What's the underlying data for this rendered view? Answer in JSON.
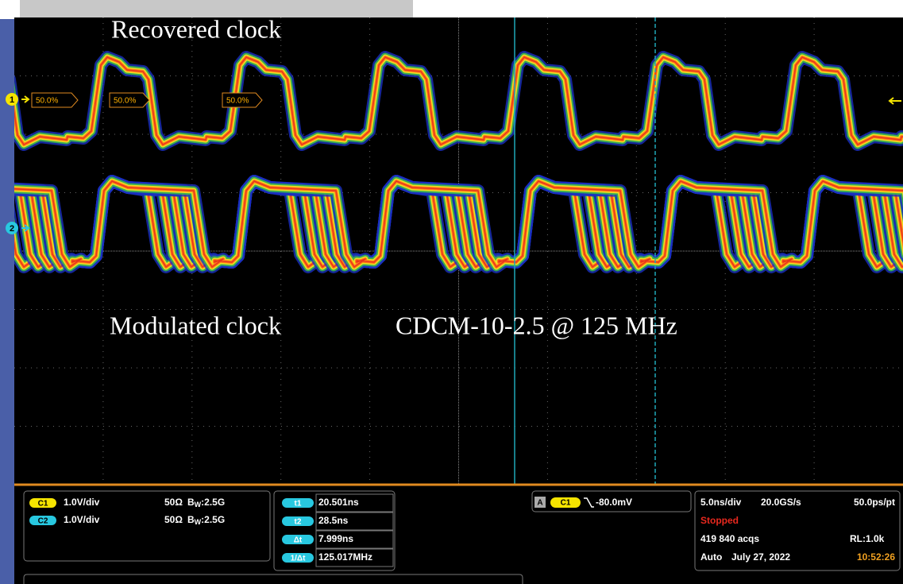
{
  "annotations": {
    "recovered": "Recovered clock",
    "modulated": "Modulated clock",
    "device": "CDCM-10-2.5 @ 125 MHz"
  },
  "markers": {
    "ch1": "1",
    "ch2": "2",
    "levels": [
      "50.0%",
      "50.0%",
      "50.0%"
    ]
  },
  "channels": [
    {
      "name": "C1",
      "scale": "1.0V/div",
      "impedance": "50Ω",
      "bw_prefix": "B",
      "bw_sub": "W",
      "bw_value": ":2.5G"
    },
    {
      "name": "C2",
      "scale": "1.0V/div",
      "impedance": "50Ω",
      "bw_prefix": "B",
      "bw_sub": "W",
      "bw_value": ":2.5G"
    }
  ],
  "cursors": [
    {
      "label": "t1",
      "value": "20.501ns"
    },
    {
      "label": "t2",
      "value": "28.5ns"
    },
    {
      "label": "Δt",
      "value": "7.999ns"
    },
    {
      "label": "1/Δt",
      "value": "125.017MHz"
    }
  ],
  "trigger": {
    "source": "A",
    "channel": "C1",
    "level": "-80.0mV"
  },
  "acquisition": {
    "timebase": "5.0ns/div",
    "sample_rate": "20.0GS/s",
    "resolution": "50.0ps/pt",
    "state": "Stopped",
    "acqs": "419 840 acqs",
    "record_length": "RL:1.0k",
    "mode": "Auto",
    "date": "July 27, 2022",
    "time": "10:52:26"
  }
}
